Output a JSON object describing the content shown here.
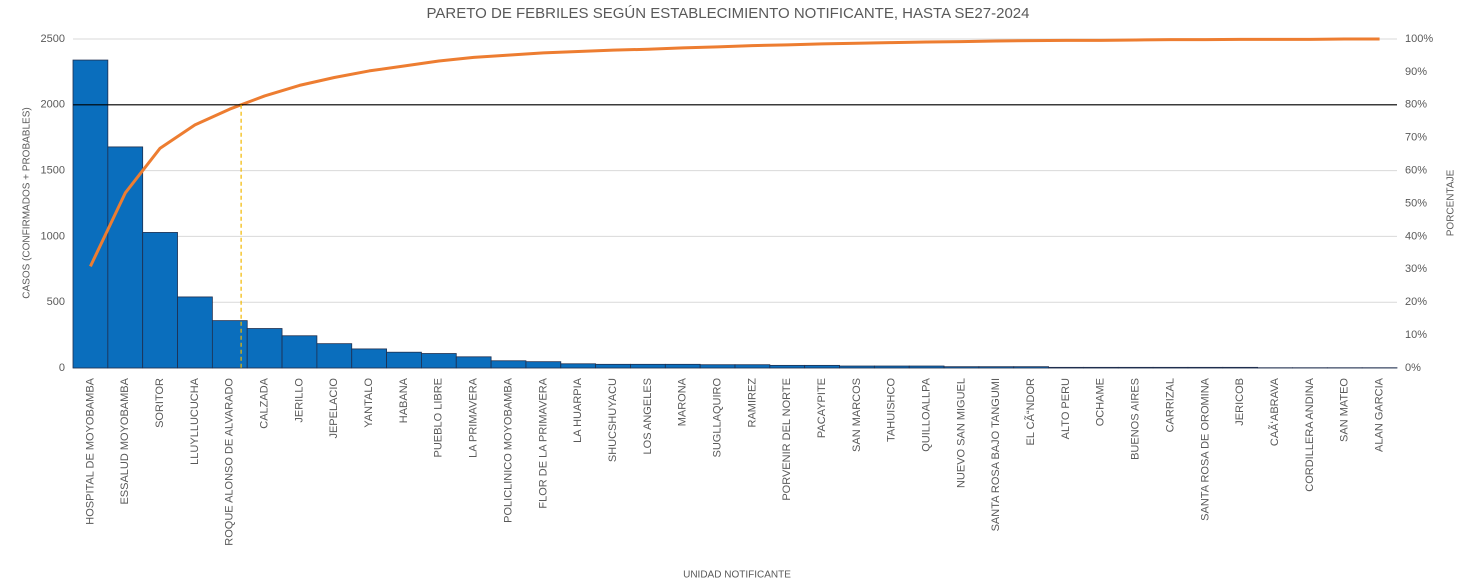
{
  "chart_data": {
    "type": "pareto",
    "title": "PARETO DE FEBRILES SEGÚN ESTABLECIMIENTO NOTIFICANTE, HASTA SE27-2024",
    "x_label": "UNIDAD NOTIFICANTE",
    "y_label": "CASOS (CONFIRMADOS + PROBABLES)",
    "y2_label": "PORCENTAJE",
    "categories": [
      "HOSPITAL DE MOYOBAMBA",
      "ESSALUD MOYOBAMBA",
      "SORITOR",
      "LLUYLLUCUCHA",
      "ROQUE ALONSO DE ALVARADO",
      "CALZADA",
      "JERILLO",
      "JEPELACIO",
      "YANTALO",
      "HABANA",
      "PUEBLO LIBRE",
      "LA PRIMAVERA",
      "POLICLINICO MOYOBAMBA",
      "FLOR DE LA PRIMAVERA",
      "LA HUARPIA",
      "SHUCSHUYACU",
      "LOS ANGELES",
      "MARONA",
      "SUGLLAQUIRO",
      "RAMIREZ",
      "PORVENIR DEL NORTE",
      "PACAYPITE",
      "SAN MARCOS",
      "TAHUISHCO",
      "QUILLOALLPA",
      "NUEVO SAN MIGUEL",
      "SANTA ROSA BAJO TANGUMI",
      "EL CÃ“NDOR",
      "ALTO PERU",
      "OCHAME",
      "BUENOS AIRES",
      "CARRIZAL",
      "SANTA ROSA DE OROMINA",
      "JERICOB",
      "CAÃ‘ABRAVA",
      "CORDILLERA ANDINA",
      "SAN MATEO",
      "ALAN GARCIA"
    ],
    "series": [
      {
        "name": "CASOS",
        "color": "#0a6ebd",
        "values": [
          2340,
          1680,
          1030,
          540,
          360,
          300,
          245,
          185,
          145,
          120,
          110,
          85,
          55,
          48,
          32,
          28,
          28,
          28,
          25,
          25,
          20,
          20,
          15,
          15,
          15,
          10,
          10,
          10,
          5,
          5,
          5,
          5,
          5,
          5,
          2,
          2,
          2,
          2
        ]
      },
      {
        "name": "PORCENTAJE",
        "color": "#ed7d31",
        "axis": "y2",
        "values": [
          30.9,
          53.2,
          66.8,
          73.9,
          78.7,
          82.7,
          85.9,
          88.3,
          90.3,
          91.8,
          93.3,
          94.4,
          95.1,
          95.8,
          96.2,
          96.6,
          96.9,
          97.3,
          97.6,
          98.0,
          98.2,
          98.5,
          98.7,
          98.9,
          99.1,
          99.2,
          99.4,
          99.5,
          99.6,
          99.6,
          99.7,
          99.8,
          99.8,
          99.9,
          99.9,
          99.9,
          100,
          100
        ]
      }
    ],
    "reference_line": 80,
    "ylim": [
      0,
      2500
    ],
    "yticks": [
      0,
      500,
      1000,
      1500,
      2000,
      2500
    ],
    "y2lim": [
      0,
      100
    ],
    "y2ticks": [
      {
        "value": 0,
        "label": "0%"
      },
      {
        "value": 10,
        "label": "10%"
      },
      {
        "value": 20,
        "label": "20%"
      },
      {
        "value": 30,
        "label": "30%"
      },
      {
        "value": 40,
        "label": "40%"
      },
      {
        "value": 50,
        "label": "50%"
      },
      {
        "value": 60,
        "label": "60%"
      },
      {
        "value": 70,
        "label": "70%"
      },
      {
        "value": 80,
        "label": "80%"
      },
      {
        "value": 90,
        "label": "90%"
      },
      {
        "value": 100,
        "label": "100%"
      }
    ],
    "grid": true
  }
}
